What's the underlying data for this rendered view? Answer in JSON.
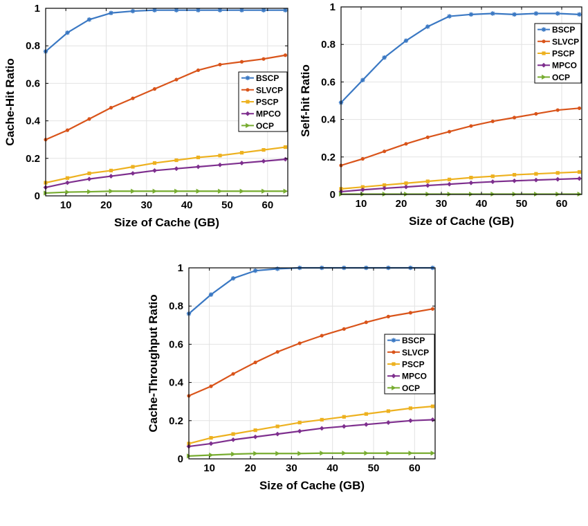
{
  "chart_data": [
    {
      "type": "line",
      "title": "",
      "xlabel": "Size of Cache (GB)",
      "ylabel": "Cache-Hit Ratio",
      "xlim": [
        5,
        65
      ],
      "ylim": [
        0,
        1
      ],
      "xticks": [
        10,
        20,
        30,
        40,
        50,
        60
      ],
      "yticks": [
        0,
        0.2,
        0.4,
        0.6,
        0.8,
        1
      ],
      "ytick_labels": [
        "0",
        "0.2",
        "0.4",
        "0.6",
        "0.8",
        "1"
      ],
      "grid": true,
      "legend_position": "center-right",
      "x": [
        5,
        10.4,
        15.8,
        21.2,
        26.6,
        32,
        37.4,
        42.8,
        48.2,
        53.6,
        59,
        64.4
      ],
      "series": [
        {
          "name": "BSCP",
          "color": "#3a78c3",
          "marker": "star",
          "values": [
            0.77,
            0.87,
            0.94,
            0.975,
            0.985,
            0.99,
            0.99,
            0.99,
            0.99,
            0.99,
            0.99,
            0.99
          ]
        },
        {
          "name": "SLVCP",
          "color": "#d9541a",
          "marker": "dot",
          "values": [
            0.3,
            0.35,
            0.41,
            0.47,
            0.52,
            0.57,
            0.62,
            0.67,
            0.7,
            0.715,
            0.73,
            0.75
          ]
        },
        {
          "name": "PSCP",
          "color": "#edb11f",
          "marker": "square",
          "values": [
            0.07,
            0.095,
            0.12,
            0.135,
            0.155,
            0.175,
            0.19,
            0.205,
            0.215,
            0.23,
            0.245,
            0.26
          ]
        },
        {
          "name": "MPCO",
          "color": "#7e2f8e",
          "marker": "diamond",
          "values": [
            0.045,
            0.07,
            0.09,
            0.105,
            0.12,
            0.135,
            0.145,
            0.155,
            0.165,
            0.175,
            0.185,
            0.195
          ]
        },
        {
          "name": "OCP",
          "color": "#77ac30",
          "marker": "triangle",
          "values": [
            0.015,
            0.02,
            0.022,
            0.025,
            0.025,
            0.025,
            0.025,
            0.025,
            0.025,
            0.025,
            0.025,
            0.025
          ]
        }
      ]
    },
    {
      "type": "line",
      "title": "",
      "xlabel": "Size of Cache (GB)",
      "ylabel": "Self-hit Ratio",
      "xlim": [
        5,
        65
      ],
      "ylim": [
        0,
        1
      ],
      "xticks": [
        10,
        20,
        30,
        40,
        50,
        60
      ],
      "yticks": [
        0,
        0.2,
        0.4,
        0.6,
        0.8,
        1
      ],
      "ytick_labels": [
        "0",
        "0.2",
        "0.4",
        "0.6",
        "0.8",
        "1"
      ],
      "grid": true,
      "legend_position": "top-right",
      "x": [
        5,
        10.4,
        15.8,
        21.2,
        26.6,
        32,
        37.4,
        42.8,
        48.2,
        53.6,
        59,
        64.4
      ],
      "series": [
        {
          "name": "BSCP",
          "color": "#3a78c3",
          "marker": "star",
          "values": [
            0.49,
            0.61,
            0.73,
            0.82,
            0.895,
            0.95,
            0.96,
            0.965,
            0.96,
            0.965,
            0.965,
            0.96
          ]
        },
        {
          "name": "SLVCP",
          "color": "#d9541a",
          "marker": "dot",
          "values": [
            0.155,
            0.19,
            0.23,
            0.27,
            0.305,
            0.335,
            0.365,
            0.39,
            0.41,
            0.43,
            0.45,
            0.46
          ]
        },
        {
          "name": "PSCP",
          "color": "#edb11f",
          "marker": "square",
          "values": [
            0.03,
            0.04,
            0.05,
            0.06,
            0.07,
            0.08,
            0.09,
            0.097,
            0.105,
            0.11,
            0.115,
            0.12
          ]
        },
        {
          "name": "MPCO",
          "color": "#7e2f8e",
          "marker": "diamond",
          "values": [
            0.015,
            0.025,
            0.033,
            0.04,
            0.048,
            0.055,
            0.062,
            0.068,
            0.073,
            0.077,
            0.081,
            0.085
          ]
        },
        {
          "name": "OCP",
          "color": "#77ac30",
          "marker": "triangle",
          "values": [
            0.002,
            0.002,
            0.002,
            0.002,
            0.002,
            0.002,
            0.002,
            0.002,
            0.002,
            0.002,
            0.002,
            0.002
          ]
        }
      ]
    },
    {
      "type": "line",
      "title": "",
      "xlabel": "Size of Cache (GB)",
      "ylabel": "Cache-Throughput Ratio",
      "xlim": [
        5,
        65
      ],
      "ylim": [
        0,
        1
      ],
      "xticks": [
        10,
        20,
        30,
        40,
        50,
        60
      ],
      "yticks": [
        0,
        0.2,
        0.4,
        0.6,
        0.8,
        1
      ],
      "ytick_labels": [
        "0",
        "0.2",
        "0.4",
        "0.6",
        "0.8",
        "1"
      ],
      "grid": true,
      "legend_position": "center-right",
      "x": [
        5,
        10.4,
        15.8,
        21.2,
        26.6,
        32,
        37.4,
        42.8,
        48.2,
        53.6,
        59,
        64.4
      ],
      "series": [
        {
          "name": "BSCP",
          "color": "#3a78c3",
          "marker": "star",
          "values": [
            0.76,
            0.86,
            0.945,
            0.985,
            0.995,
            1.0,
            1.0,
            1.0,
            1.0,
            1.0,
            1.0,
            1.0
          ]
        },
        {
          "name": "SLVCP",
          "color": "#d9541a",
          "marker": "dot",
          "values": [
            0.33,
            0.38,
            0.445,
            0.505,
            0.56,
            0.605,
            0.645,
            0.68,
            0.715,
            0.745,
            0.765,
            0.785
          ]
        },
        {
          "name": "PSCP",
          "color": "#edb11f",
          "marker": "square",
          "values": [
            0.08,
            0.11,
            0.13,
            0.15,
            0.17,
            0.19,
            0.205,
            0.22,
            0.235,
            0.25,
            0.265,
            0.275
          ]
        },
        {
          "name": "MPCO",
          "color": "#7e2f8e",
          "marker": "diamond",
          "values": [
            0.065,
            0.08,
            0.1,
            0.115,
            0.13,
            0.145,
            0.16,
            0.17,
            0.18,
            0.19,
            0.2,
            0.205
          ]
        },
        {
          "name": "OCP",
          "color": "#77ac30",
          "marker": "triangle",
          "values": [
            0.015,
            0.02,
            0.025,
            0.028,
            0.028,
            0.028,
            0.03,
            0.03,
            0.03,
            0.03,
            0.03,
            0.03
          ]
        }
      ]
    }
  ]
}
